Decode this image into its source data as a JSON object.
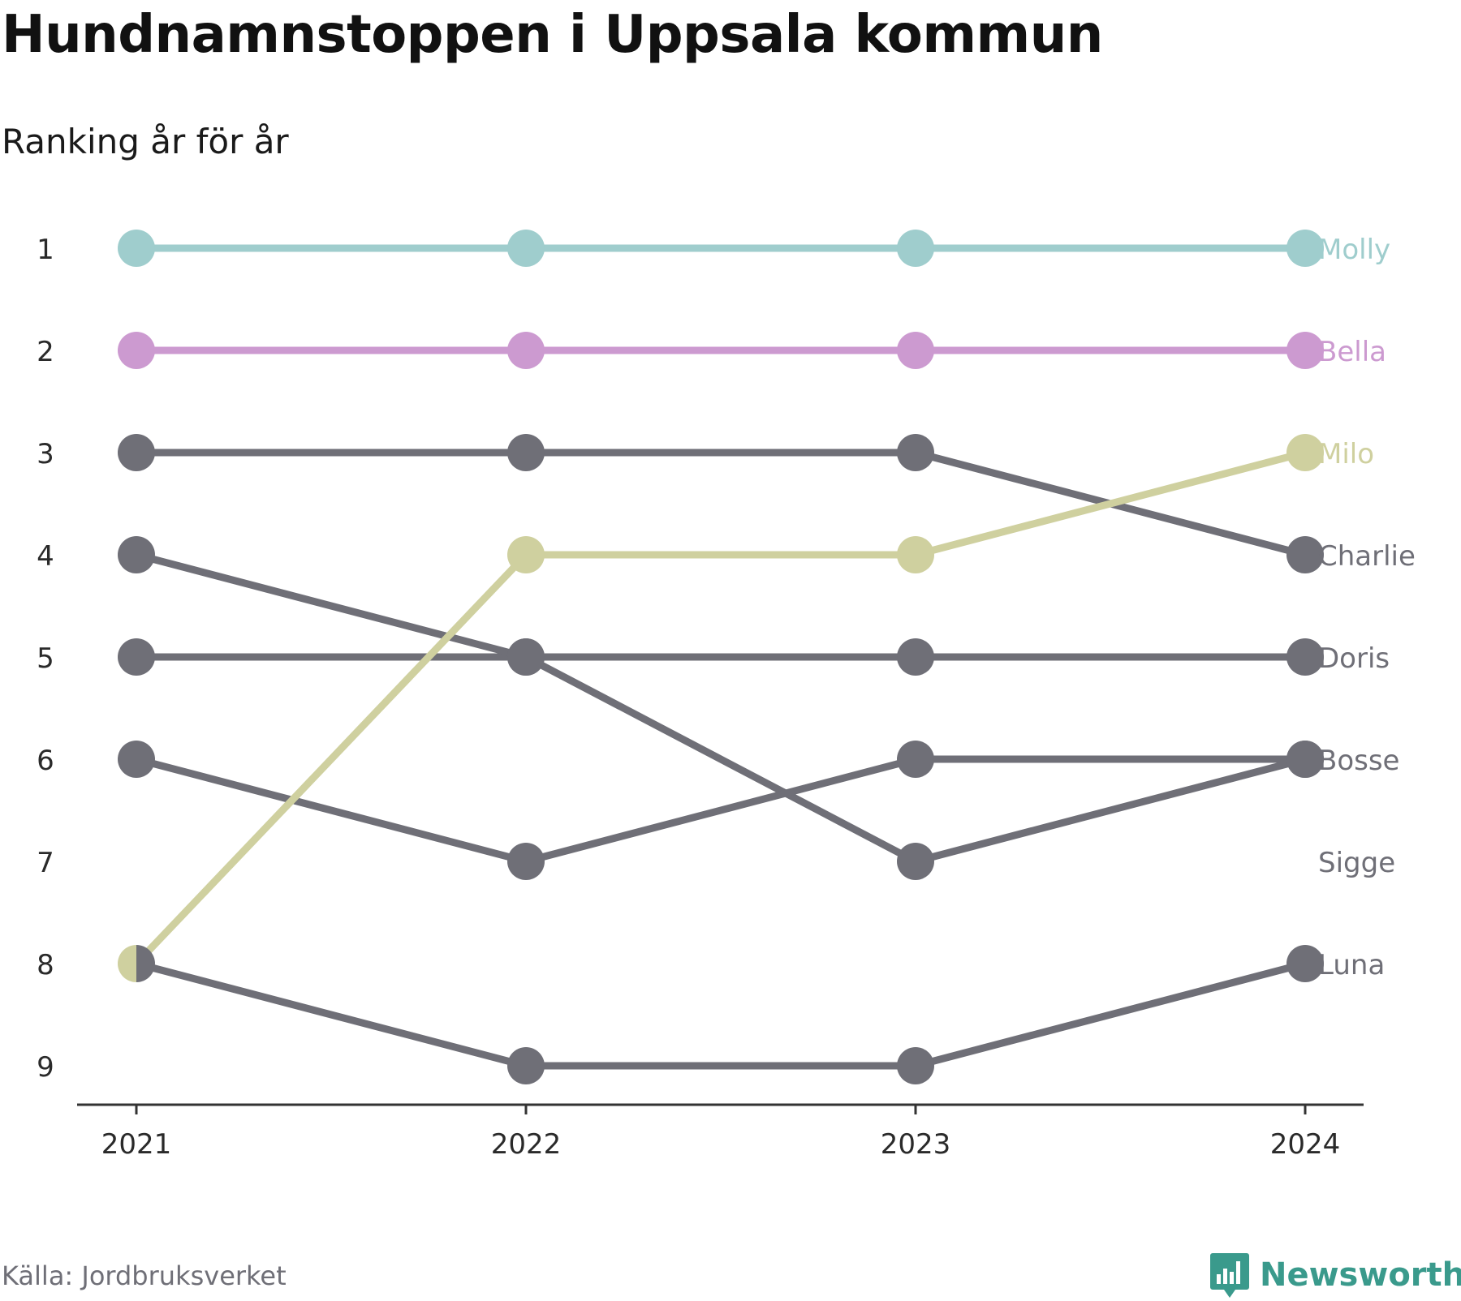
{
  "title": "Hundnamnstoppen i Uppsala kommun",
  "subtitle": "Ranking år för år",
  "source": "Källa: Jordbruksverket",
  "brand": {
    "name": "Newsworthy",
    "icon": "bar-chart-speech-bubble-icon",
    "color": "#3a9a8c"
  },
  "chart_data": {
    "type": "line",
    "subtype": "bump",
    "x": [
      "2021",
      "2022",
      "2023",
      "2024"
    ],
    "y_ticks": [
      "1",
      "2",
      "3",
      "4",
      "5",
      "6",
      "7",
      "8",
      "9"
    ],
    "ylim": [
      1,
      9
    ],
    "y_inverted": true,
    "grid": false,
    "legend": "direct labels at right end",
    "series": [
      {
        "name": "Molly",
        "values": [
          1,
          1,
          1,
          1
        ],
        "color": "#9fcdcd"
      },
      {
        "name": "Bella",
        "values": [
          2,
          2,
          2,
          2
        ],
        "color": "#cc9ad0"
      },
      {
        "name": "Milo",
        "values": [
          8,
          4,
          4,
          3
        ],
        "color": "#cfd09f"
      },
      {
        "name": "Charlie",
        "values": [
          3,
          3,
          3,
          4
        ],
        "color": "#6f6f77"
      },
      {
        "name": "Doris",
        "values": [
          5,
          5,
          5,
          5
        ],
        "color": "#6f6f77"
      },
      {
        "name": "Bosse",
        "values": [
          4,
          5,
          7,
          6
        ],
        "color": "#6f6f77"
      },
      {
        "name": "Sigge",
        "values": [
          6,
          7,
          6,
          6
        ],
        "color": "#6f6f77"
      },
      {
        "name": "Luna",
        "values": [
          8,
          9,
          9,
          8
        ],
        "color": "#6f6f77"
      }
    ],
    "end_labels": [
      {
        "text": "Molly",
        "rank": 1,
        "color": "#9fcdcd"
      },
      {
        "text": "Bella",
        "rank": 2,
        "color": "#cc9ad0"
      },
      {
        "text": "Milo",
        "rank": 3,
        "color": "#cfd09f"
      },
      {
        "text": "Charlie",
        "rank": 4,
        "color": "#6f6f77"
      },
      {
        "text": "Doris",
        "rank": 5,
        "color": "#6f6f77"
      },
      {
        "text": "Bosse",
        "rank": 6,
        "color": "#6f6f77"
      },
      {
        "text": "Sigge",
        "rank": 7,
        "color": "#6f6f77"
      },
      {
        "text": "Luna",
        "rank": 8,
        "color": "#6f6f77"
      }
    ],
    "axis_color": "#333333",
    "tick_label_color": "#2a2a2a"
  }
}
